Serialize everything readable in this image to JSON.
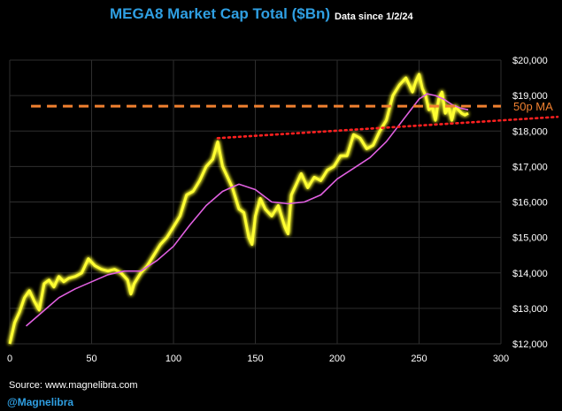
{
  "header": {
    "title": "MEGA8 Market Cap Total ($Bn)",
    "subtitle": "Data since 1/2/24"
  },
  "footer": {
    "source": "Source: www.magnelibra.com",
    "handle": "@Magnelibra"
  },
  "colors": {
    "background": "#000000",
    "title": "#2f9fe2",
    "price_line": "#ffff33",
    "ma_line": "#e060e0",
    "ma_level_line": "#f08030",
    "trend_line": "#ff2020",
    "grid": "#2e2e2e",
    "text": "#ffffff"
  },
  "chart_data": {
    "type": "line",
    "xlim": [
      0,
      300
    ],
    "ylim": [
      12000,
      20000
    ],
    "x_ticks": [
      0,
      50,
      100,
      150,
      200,
      250,
      300
    ],
    "y_ticks": [
      12000,
      13000,
      14000,
      15000,
      16000,
      17000,
      18000,
      19000,
      20000
    ],
    "y_tick_labels": [
      "$12,000",
      "$13,000",
      "$14,000",
      "$15,000",
      "$16,000",
      "$17,000",
      "$18,000",
      "$19,000",
      "$20,000"
    ],
    "grid": true,
    "series": [
      {
        "role": "price",
        "x": [
          0,
          3,
          6,
          9,
          12,
          15,
          18,
          21,
          24,
          27,
          30,
          33,
          36,
          40,
          44,
          48,
          52,
          56,
          60,
          64,
          68,
          72,
          74,
          76,
          80,
          84,
          88,
          92,
          96,
          100,
          104,
          108,
          112,
          116,
          120,
          124,
          127,
          130,
          133,
          136,
          140,
          143,
          146,
          148,
          150,
          153,
          156,
          160,
          164,
          168,
          170,
          172,
          175,
          178,
          182,
          186,
          190,
          194,
          198,
          202,
          206,
          210,
          214,
          218,
          222,
          226,
          230,
          234,
          238,
          242,
          246,
          248,
          250,
          252,
          254,
          256,
          258,
          260,
          262,
          264,
          266,
          268,
          270,
          272,
          274,
          276,
          278,
          280
        ],
        "values": [
          12000,
          12600,
          12900,
          13300,
          13500,
          13200,
          12950,
          13700,
          13800,
          13600,
          13900,
          13750,
          13850,
          13900,
          14000,
          14400,
          14200,
          14100,
          14050,
          14100,
          14000,
          13800,
          13400,
          13700,
          14000,
          14200,
          14500,
          14800,
          15000,
          15300,
          15600,
          16200,
          16300,
          16600,
          17000,
          17200,
          17700,
          17000,
          16700,
          16400,
          15800,
          15700,
          15000,
          14800,
          15600,
          16100,
          15800,
          15600,
          15900,
          15300,
          15100,
          16200,
          16500,
          16800,
          16400,
          16700,
          16600,
          16900,
          17000,
          17300,
          17300,
          17900,
          17800,
          17500,
          17600,
          18000,
          18300,
          19000,
          19300,
          19500,
          19100,
          19400,
          19600,
          19200,
          19000,
          18600,
          18700,
          18300,
          18900,
          19100,
          18500,
          18700,
          18300,
          18700,
          18600,
          18500,
          18450,
          18500
        ]
      },
      {
        "role": "moving_average",
        "x": [
          10,
          20,
          30,
          40,
          50,
          60,
          70,
          80,
          90,
          100,
          110,
          120,
          130,
          140,
          150,
          160,
          170,
          180,
          190,
          200,
          210,
          220,
          230,
          240,
          250,
          255,
          260,
          265,
          270,
          275,
          280
        ],
        "values": [
          12500,
          12900,
          13300,
          13550,
          13750,
          13950,
          14050,
          14050,
          14350,
          14750,
          15350,
          15900,
          16300,
          16500,
          16350,
          16000,
          15950,
          16000,
          16200,
          16650,
          16950,
          17250,
          17700,
          18300,
          18900,
          19050,
          19000,
          18900,
          18750,
          18650,
          18600
        ]
      }
    ],
    "ma_level": 18700,
    "ma_level_label": "50p MA",
    "trend_line": {
      "x": [
        127,
        300
      ],
      "values": [
        17800,
        18300
      ]
    }
  }
}
